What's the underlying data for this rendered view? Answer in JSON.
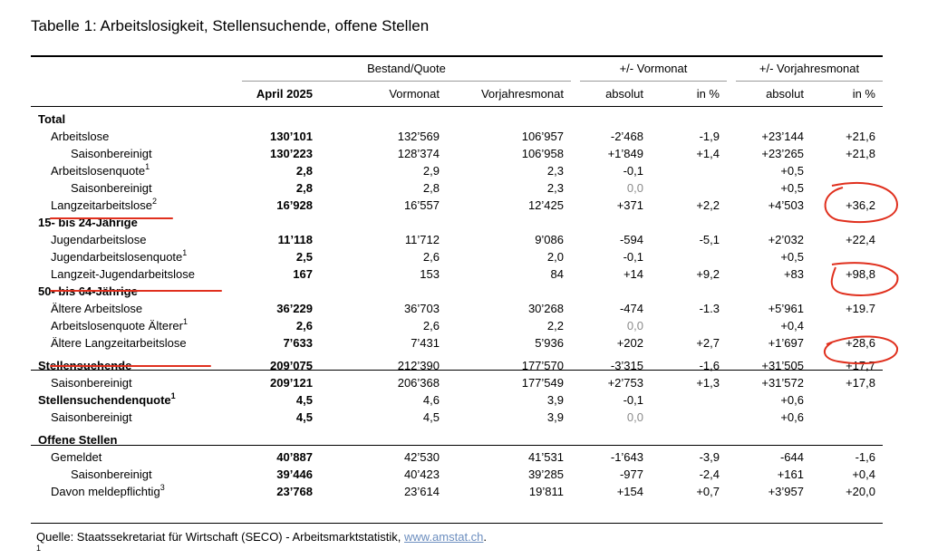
{
  "title": "Tabelle 1: Arbeitslosigkeit, Stellensuchende, offene Stellen",
  "headers": {
    "group_stock": "Bestand/Quote",
    "group_prev_month": "+/- Vormonat",
    "group_prev_year": "+/- Vorjahresmonat",
    "current": "April 2025",
    "prev_month": "Vormonat",
    "prev_year_month": "Vorjahresmonat",
    "abs1": "absolut",
    "pct1": "in %",
    "abs2": "absolut",
    "pct2": "in %"
  },
  "rows": [
    {
      "label": "Total",
      "section": true
    },
    {
      "label": "Arbeitslose",
      "indent": 1,
      "cur": "130’101",
      "pm": "132’569",
      "py": "106’957",
      "d1": "-2’468",
      "p1": "-1,9",
      "d2": "+23’144",
      "p2": "+21,6"
    },
    {
      "label": "Saisonbereinigt",
      "indent": 2,
      "cur": "130’223",
      "pm": "128’374",
      "py": "106’958",
      "d1": "+1’849",
      "p1": "+1,4",
      "d2": "+23’265",
      "p2": "+21,8"
    },
    {
      "label": "Arbeitslosenquote",
      "sup": "1",
      "indent": 1,
      "cur": "2,8",
      "pm": "2,9",
      "py": "2,3",
      "d1": "-0,1",
      "p1": "",
      "d2": "+0,5",
      "p2": ""
    },
    {
      "label": "Saisonbereinigt",
      "indent": 2,
      "cur": "2,8",
      "pm": "2,8",
      "py": "2,3",
      "d1": "0,0",
      "d1grey": true,
      "p1": "",
      "d2": "+0,5",
      "p2": ""
    },
    {
      "label": "Langzeitarbeitslose",
      "sup": "2",
      "indent": 1,
      "cur": "16’928",
      "pm": "16’557",
      "py": "12’425",
      "d1": "+371",
      "p1": "+2,2",
      "d2": "+4’503",
      "p2": "+36,2"
    },
    {
      "label": "15- bis 24-Jährige",
      "section": true
    },
    {
      "label": "Jugendarbeitslose",
      "indent": 1,
      "cur": "11’118",
      "pm": "11’712",
      "py": "9’086",
      "d1": "-594",
      "p1": "-5,1",
      "d2": "+2’032",
      "p2": "+22,4"
    },
    {
      "label": "Jugendarbeitslosenquote",
      "sup": "1",
      "indent": 1,
      "cur": "2,5",
      "pm": "2,6",
      "py": "2,0",
      "d1": "-0,1",
      "p1": "",
      "d2": "+0,5",
      "p2": ""
    },
    {
      "label": "Langzeit-Jugendarbeitslose",
      "indent": 1,
      "cur": "167",
      "pm": "153",
      "py": "84",
      "d1": "+14",
      "p1": "+9,2",
      "d2": "+83",
      "p2": "+98,8"
    },
    {
      "label": "50- bis 64-Jährige",
      "section": true
    },
    {
      "label": "Ältere Arbeitslose",
      "indent": 1,
      "cur": "36’229",
      "pm": "36’703",
      "py": "30’268",
      "d1": "-474",
      "p1": "-1.3",
      "d2": "+5’961",
      "p2": "+19.7"
    },
    {
      "label": "Arbeitslosenquote Älterer",
      "sup": "1",
      "indent": 1,
      "cur": "2,6",
      "pm": "2,6",
      "py": "2,2",
      "d1": "0,0",
      "d1grey": true,
      "p1": "",
      "d2": "+0,4",
      "p2": ""
    },
    {
      "label": "Ältere Langzeitarbeitslose",
      "indent": 1,
      "cur": "7’633",
      "pm": "7’431",
      "py": "5’936",
      "d1": "+202",
      "p1": "+2,7",
      "d2": "+1’697",
      "p2": "+28,6"
    },
    {
      "label": "Stellensuchende",
      "bold": true,
      "indent": 0,
      "cur": "209’075",
      "pm": "212’390",
      "py": "177’570",
      "d1": "-3’315",
      "p1": "-1,6",
      "d2": "+31’505",
      "p2": "+17,7"
    },
    {
      "label": "Saisonbereinigt",
      "indent": 1,
      "cur": "209’121",
      "pm": "206’368",
      "py": "177’549",
      "d1": "+2’753",
      "p1": "+1,3",
      "d2": "+31’572",
      "p2": "+17,8"
    },
    {
      "label": "Stellensuchendenquote",
      "sup": "1",
      "bold": true,
      "indent": 0,
      "cur": "4,5",
      "pm": "4,6",
      "py": "3,9",
      "d1": "-0,1",
      "p1": "",
      "d2": "+0,6",
      "p2": ""
    },
    {
      "label": "Saisonbereinigt",
      "indent": 1,
      "cur": "4,5",
      "pm": "4,5",
      "py": "3,9",
      "d1": "0,0",
      "d1grey": true,
      "p1": "",
      "d2": "+0,6",
      "p2": ""
    },
    {
      "label": "Offene Stellen",
      "section": true
    },
    {
      "label": "Gemeldet",
      "indent": 1,
      "cur": "40’887",
      "pm": "42’530",
      "py": "41’531",
      "d1": "-1’643",
      "p1": "-3,9",
      "d2": "-644",
      "p2": "-1,6"
    },
    {
      "label": "Saisonbereinigt",
      "indent": 2,
      "cur": "39’446",
      "pm": "40’423",
      "py": "39’285",
      "d1": "-977",
      "p1": "-2,4",
      "d2": "+161",
      "p2": "+0,4"
    },
    {
      "label": "Davon meldepflichtig",
      "sup": "3",
      "indent": 1,
      "cur": "23’768",
      "pm": "23’614",
      "py": "19’811",
      "d1": "+154",
      "p1": "+0,7",
      "d2": "+3’957",
      "p2": "+20,0"
    }
  ],
  "source_prefix": "Quelle: Staatssekretariat für Wirtschaft (SECO) - Arbeitsmarktstatistik, ",
  "source_link": "www.amstat.ch",
  "source_suffix": ".",
  "footnote_mark": "1"
}
